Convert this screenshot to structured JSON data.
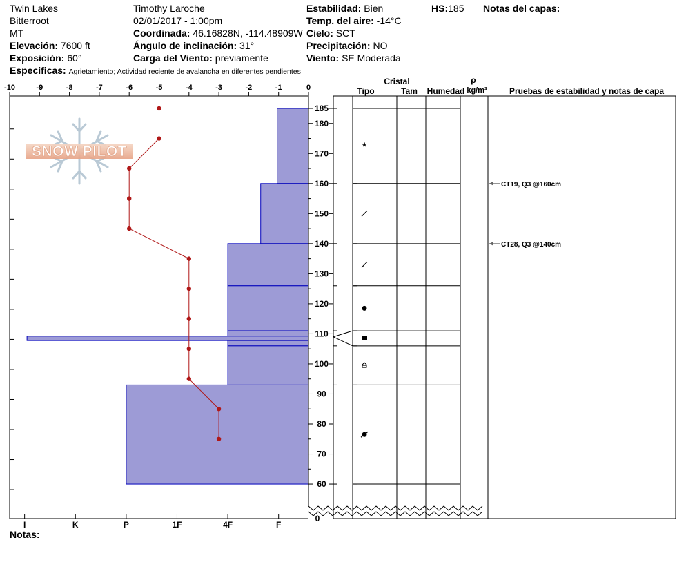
{
  "header": {
    "location": "Twin Lakes",
    "range": "Bitterroot",
    "state": "MT",
    "observer": "Timothy  Laroche",
    "datetime": "02/01/2017 - 1:00pm",
    "elevation_label": "Elevación:",
    "elevation": "7600 ft",
    "aspect_label": "Exposición:",
    "aspect": "60°",
    "coord_label": "Coordinada:",
    "coord": "46.16828N, -114.48909W",
    "angle_label": "Ángulo de inclinación:",
    "angle": "31°",
    "windload_label": "Carga del Viento:",
    "windload": "previamente",
    "stability_label": "Estabilidad:",
    "stability": "Bien",
    "airtemp_label": "Temp. del aire:",
    "airtemp": "-14°C",
    "sky_label": "Cielo:",
    "sky": "SCT",
    "precip_label": "Precipitación:",
    "precip": "NO",
    "wind_label": "Viento:",
    "wind": "SE Moderada",
    "hs_label": "HS:",
    "hs": "185",
    "layer_notes_label": "Notas del capas:",
    "specifics_label": "Especificas:",
    "specifics": "Agrietamiento;  Actividad reciente de avalancha en diferentes pendientes"
  },
  "logo": {
    "text": "SNOW PILOT"
  },
  "columns": {
    "crystal": "Cristal",
    "type": "Tipo",
    "size": "Tam",
    "moisture": "Humedad",
    "rho": "ρ",
    "density_unit": "kg/m³",
    "tests": "Pruebas de estabilidad y notas de capa"
  },
  "footer": {
    "notes_label": "Notas:"
  },
  "colors": {
    "hardness_fill": "#9d9bd6",
    "hardness_stroke": "#0000bb",
    "temp_line": "#b01818",
    "test_arrow": "#666666"
  },
  "chart_data": {
    "type": "snow-profile",
    "temperature": {
      "xlim": [
        -10,
        0
      ],
      "xticks": [
        -10,
        -9,
        -8,
        -7,
        -6,
        -5,
        -4,
        -3,
        -2,
        -1,
        0
      ],
      "unit": "°C",
      "points": [
        {
          "height": 185,
          "temp": -5
        },
        {
          "height": 175,
          "temp": -5
        },
        {
          "height": 165,
          "temp": -6
        },
        {
          "height": 155,
          "temp": -6
        },
        {
          "height": 145,
          "temp": -6
        },
        {
          "height": 135,
          "temp": -4
        },
        {
          "height": 125,
          "temp": -4
        },
        {
          "height": 115,
          "temp": -4
        },
        {
          "height": 105,
          "temp": -4
        },
        {
          "height": 95,
          "temp": -4
        },
        {
          "height": 85,
          "temp": -3
        },
        {
          "height": 75,
          "temp": -3
        }
      ]
    },
    "height_axis": {
      "ticks": [
        60,
        70,
        80,
        90,
        100,
        110,
        120,
        130,
        140,
        150,
        160,
        170,
        180,
        185
      ],
      "zero_label": "0",
      "range": [
        55,
        190
      ]
    },
    "hardness_scale": [
      "I",
      "K",
      "P",
      "1F",
      "4F",
      "F"
    ],
    "layers": [
      {
        "top": 185,
        "bottom": 160,
        "hardness_idx": 10.0,
        "grain": "precipitation-particles"
      },
      {
        "top": 160,
        "bottom": 140,
        "hardness_idx": 9.4,
        "grain": "decomposing-fragments"
      },
      {
        "top": 140,
        "bottom": 126,
        "hardness_idx": 7.3,
        "grain": "decomposing-fragments"
      },
      {
        "top": 126,
        "bottom": 111,
        "hardness_idx": 7.3,
        "grain": "rounded-grains"
      },
      {
        "top": 111,
        "bottom": 106,
        "hardness_idx": 7.3,
        "grain": "ice-formation",
        "thin_layer_hardness_idx": 0.5,
        "thin_top": 109,
        "thin_bottom": 108
      },
      {
        "top": 106,
        "bottom": 93,
        "hardness_idx": 7.3,
        "grain": "faceted-crystals"
      },
      {
        "top": 93,
        "bottom": 60,
        "hardness_idx": 4.0,
        "grain": "rounded-facets"
      }
    ],
    "stability_tests": [
      {
        "label": "CT19, Q3 @160cm",
        "height": 160
      },
      {
        "label": "CT28, Q3 @140cm",
        "height": 140
      }
    ]
  }
}
